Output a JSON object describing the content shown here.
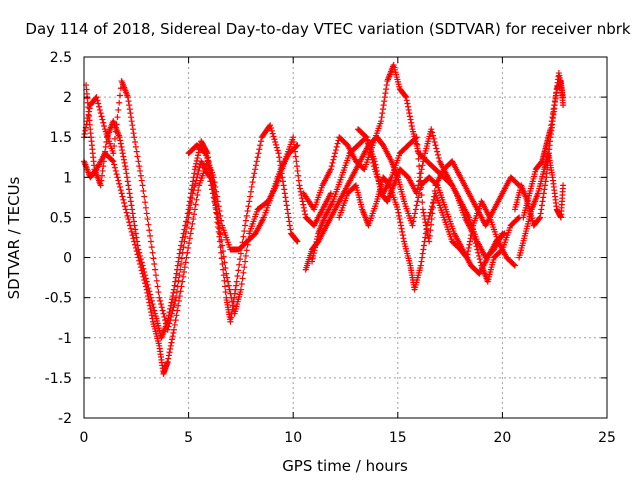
{
  "chart_data": {
    "type": "scatter",
    "title": "Day 114 of 2018, Sidereal Day-to-day VTEC variation (SDTVAR) for receiver nbrk",
    "xlabel": "GPS time / hours",
    "ylabel": "SDTVAR / TECUs",
    "xlim": [
      0,
      25
    ],
    "ylim": [
      -2,
      2.5
    ],
    "xticks": [
      0,
      5,
      10,
      15,
      20,
      25
    ],
    "yticks": [
      -2,
      -1.5,
      -1,
      -0.5,
      0,
      0.5,
      1,
      1.5,
      2,
      2.5
    ],
    "grid": true,
    "marker": "plus",
    "series": [
      {
        "color": "#ff0000",
        "tracks": [
          [
            [
              0.0,
              1.2
            ],
            [
              0.3,
              1.0
            ],
            [
              0.6,
              1.1
            ],
            [
              1.0,
              1.3
            ],
            [
              1.4,
              1.2
            ],
            [
              1.8,
              0.8
            ],
            [
              2.2,
              0.4
            ],
            [
              2.6,
              0.0
            ],
            [
              3.0,
              -0.4
            ],
            [
              3.3,
              -0.8
            ],
            [
              3.6,
              -1.1
            ],
            [
              3.8,
              -1.45
            ],
            [
              4.0,
              -1.3
            ],
            [
              4.3,
              -0.9
            ],
            [
              4.7,
              -0.3
            ],
            [
              5.1,
              0.3
            ],
            [
              5.5,
              0.9
            ],
            [
              5.9,
              1.2
            ],
            [
              6.2,
              0.9
            ],
            [
              6.5,
              0.3
            ]
          ],
          [
            [
              0.1,
              2.15
            ],
            [
              0.3,
              1.6
            ],
            [
              0.5,
              1.1
            ],
            [
              0.8,
              0.9
            ],
            [
              1.1,
              1.5
            ],
            [
              1.4,
              1.7
            ],
            [
              1.7,
              1.5
            ],
            [
              2.0,
              1.1
            ],
            [
              2.3,
              0.6
            ],
            [
              2.6,
              0.1
            ],
            [
              3.0,
              -0.3
            ],
            [
              3.4,
              -0.7
            ],
            [
              3.7,
              -1.0
            ],
            [
              4.0,
              -0.8
            ],
            [
              4.3,
              -0.4
            ],
            [
              4.6,
              0.1
            ],
            [
              5.0,
              0.6
            ],
            [
              5.3,
              1.1
            ],
            [
              5.6,
              1.45
            ],
            [
              5.9,
              1.3
            ],
            [
              6.2,
              0.8
            ],
            [
              6.5,
              0.2
            ],
            [
              6.8,
              -0.5
            ],
            [
              7.0,
              -0.8
            ],
            [
              7.3,
              -0.3
            ],
            [
              7.7,
              0.4
            ],
            [
              8.1,
              1.0
            ],
            [
              8.5,
              1.5
            ],
            [
              8.9,
              1.65
            ],
            [
              9.3,
              1.3
            ],
            [
              9.6,
              0.8
            ],
            [
              9.9,
              0.3
            ],
            [
              10.2,
              0.2
            ]
          ],
          [
            [
              0.0,
              1.5
            ],
            [
              0.3,
              1.9
            ],
            [
              0.6,
              2.0
            ],
            [
              1.0,
              1.6
            ],
            [
              1.4,
              1.3
            ],
            [
              1.8,
              2.2
            ],
            [
              2.1,
              2.0
            ],
            [
              2.4,
              1.5
            ],
            [
              2.8,
              0.9
            ],
            [
              3.2,
              0.2
            ],
            [
              3.6,
              -0.5
            ],
            [
              4.0,
              -0.9
            ],
            [
              4.4,
              -0.5
            ],
            [
              4.8,
              0.2
            ],
            [
              5.2,
              0.8
            ],
            [
              5.6,
              1.2
            ],
            [
              6.0,
              1.0
            ],
            [
              6.4,
              0.5
            ],
            [
              6.8,
              -0.2
            ],
            [
              7.2,
              -0.7
            ],
            [
              7.5,
              -0.4
            ],
            [
              7.9,
              0.3
            ],
            [
              8.3,
              0.6
            ],
            [
              8.8,
              0.7
            ],
            [
              9.2,
              0.9
            ],
            [
              9.6,
              1.2
            ],
            [
              10.0,
              1.5
            ],
            [
              10.3,
              0.9
            ],
            [
              10.6,
              0.5
            ],
            [
              11.0,
              0.4
            ],
            [
              11.4,
              0.6
            ],
            [
              11.8,
              0.8
            ]
          ],
          [
            [
              5.0,
              1.3
            ],
            [
              5.4,
              1.4
            ],
            [
              5.8,
              1.3
            ],
            [
              6.2,
              1.0
            ],
            [
              6.6,
              0.4
            ],
            [
              7.0,
              0.1
            ],
            [
              7.4,
              0.1
            ],
            [
              7.8,
              0.2
            ],
            [
              8.2,
              0.3
            ],
            [
              8.6,
              0.5
            ],
            [
              9.0,
              0.8
            ],
            [
              9.4,
              1.1
            ],
            [
              9.8,
              1.3
            ],
            [
              10.2,
              1.4
            ]
          ],
          [
            [
              10.5,
              0.8
            ],
            [
              11.0,
              0.6
            ],
            [
              11.4,
              0.9
            ],
            [
              11.8,
              1.1
            ],
            [
              12.2,
              1.5
            ],
            [
              12.6,
              1.4
            ],
            [
              13.0,
              1.2
            ],
            [
              13.4,
              1.1
            ],
            [
              13.8,
              1.4
            ],
            [
              14.2,
              1.7
            ],
            [
              14.5,
              2.2
            ],
            [
              14.8,
              2.4
            ],
            [
              15.1,
              2.1
            ],
            [
              15.4,
              2.0
            ],
            [
              15.7,
              1.6
            ],
            [
              16.0,
              1.3
            ],
            [
              16.4,
              1.2
            ],
            [
              16.8,
              1.1
            ],
            [
              17.2,
              1.0
            ],
            [
              17.6,
              0.9
            ],
            [
              18.0,
              0.7
            ],
            [
              18.4,
              0.5
            ],
            [
              18.8,
              0.2
            ],
            [
              19.2,
              0.0
            ],
            [
              19.6,
              0.1
            ],
            [
              20.0,
              0.3
            ]
          ],
          [
            [
              10.9,
              -0.05
            ],
            [
              11.2,
              0.3
            ],
            [
              11.5,
              0.5
            ],
            [
              11.9,
              0.7
            ],
            [
              12.3,
              1.0
            ],
            [
              12.7,
              1.3
            ],
            [
              13.1,
              1.4
            ],
            [
              13.5,
              1.5
            ],
            [
              13.9,
              1.2
            ],
            [
              14.2,
              0.8
            ],
            [
              14.5,
              0.7
            ],
            [
              14.8,
              0.9
            ],
            [
              15.1,
              1.1
            ],
            [
              15.5,
              1.0
            ],
            [
              15.9,
              0.8
            ],
            [
              16.3,
              1.3
            ],
            [
              16.6,
              1.6
            ],
            [
              17.0,
              1.2
            ],
            [
              17.4,
              1.0
            ],
            [
              17.8,
              0.8
            ],
            [
              18.2,
              0.5
            ],
            [
              18.6,
              0.3
            ],
            [
              19.0,
              -0.1
            ],
            [
              19.3,
              -0.3
            ],
            [
              19.6,
              0.0
            ],
            [
              20.0,
              0.1
            ],
            [
              20.4,
              0.4
            ],
            [
              20.8,
              0.5
            ]
          ],
          [
            [
              13.1,
              1.6
            ],
            [
              13.5,
              1.5
            ],
            [
              13.9,
              1.1
            ],
            [
              14.3,
              0.8
            ],
            [
              14.7,
              1.0
            ],
            [
              15.1,
              1.3
            ],
            [
              15.5,
              1.4
            ],
            [
              15.9,
              1.5
            ],
            [
              16.2,
              0.6
            ],
            [
              16.5,
              0.2
            ],
            [
              16.8,
              0.9
            ],
            [
              17.2,
              1.1
            ],
            [
              17.6,
              1.2
            ],
            [
              18.0,
              1.0
            ],
            [
              18.4,
              0.8
            ],
            [
              18.8,
              0.6
            ],
            [
              19.2,
              0.4
            ],
            [
              19.6,
              0.6
            ],
            [
              20.0,
              0.8
            ],
            [
              20.4,
              1.0
            ],
            [
              20.8,
              0.9
            ]
          ],
          [
            [
              12.2,
              0.5
            ],
            [
              12.6,
              0.8
            ],
            [
              13.0,
              0.9
            ],
            [
              13.3,
              0.6
            ],
            [
              13.6,
              0.4
            ],
            [
              14.0,
              0.7
            ],
            [
              14.3,
              1.0
            ],
            [
              14.6,
              0.9
            ],
            [
              15.0,
              0.6
            ],
            [
              15.3,
              0.2
            ],
            [
              15.6,
              -0.1
            ],
            [
              15.8,
              -0.4
            ],
            [
              16.1,
              -0.1
            ],
            [
              16.4,
              0.4
            ],
            [
              16.8,
              0.8
            ],
            [
              17.2,
              0.5
            ],
            [
              17.6,
              0.2
            ],
            [
              18.0,
              0.1
            ],
            [
              18.3,
              0.0
            ],
            [
              18.6,
              0.4
            ],
            [
              19.0,
              0.7
            ],
            [
              19.4,
              0.5
            ],
            [
              19.8,
              0.2
            ],
            [
              20.2,
              0.0
            ],
            [
              20.6,
              -0.1
            ]
          ],
          [
            [
              10.6,
              -0.15
            ],
            [
              10.9,
              0.1
            ],
            [
              11.2,
              0.2
            ],
            [
              11.6,
              0.4
            ],
            [
              12.0,
              0.6
            ],
            [
              12.4,
              0.8
            ],
            [
              12.8,
              1.0
            ],
            [
              13.2,
              1.2
            ],
            [
              13.6,
              1.4
            ],
            [
              14.0,
              1.5
            ],
            [
              14.3,
              1.4
            ],
            [
              14.7,
              1.2
            ],
            [
              15.0,
              1.0
            ],
            [
              15.3,
              0.7
            ],
            [
              15.7,
              0.4
            ],
            [
              16.1,
              0.9
            ],
            [
              16.5,
              1.0
            ],
            [
              16.9,
              0.9
            ],
            [
              17.3,
              0.6
            ],
            [
              17.7,
              0.3
            ],
            [
              18.1,
              0.1
            ],
            [
              18.5,
              -0.1
            ],
            [
              18.9,
              -0.2
            ],
            [
              19.3,
              0.0
            ],
            [
              19.7,
              0.2
            ],
            [
              20.1,
              0.3
            ]
          ],
          [
            [
              20.6,
              0.6
            ],
            [
              20.9,
              0.9
            ],
            [
              21.2,
              0.7
            ],
            [
              21.5,
              0.4
            ],
            [
              21.8,
              0.5
            ],
            [
              22.1,
              1.0
            ],
            [
              22.3,
              1.5
            ],
            [
              22.5,
              1.9
            ],
            [
              22.7,
              2.3
            ],
            [
              22.9,
              2.0
            ]
          ],
          [
            [
              21.0,
              0.5
            ],
            [
              21.3,
              0.8
            ],
            [
              21.6,
              1.1
            ],
            [
              21.9,
              1.2
            ],
            [
              22.1,
              1.4
            ],
            [
              22.3,
              1.6
            ],
            [
              22.6,
              2.1
            ],
            [
              22.8,
              2.2
            ],
            [
              22.9,
              1.9
            ]
          ],
          [
            [
              20.8,
              0.0
            ],
            [
              21.1,
              0.3
            ],
            [
              21.4,
              0.6
            ],
            [
              21.7,
              0.8
            ],
            [
              22.0,
              1.1
            ],
            [
              22.2,
              1.3
            ],
            [
              22.4,
              1.0
            ],
            [
              22.6,
              0.6
            ],
            [
              22.8,
              0.5
            ],
            [
              22.9,
              0.9
            ]
          ]
        ]
      }
    ]
  }
}
